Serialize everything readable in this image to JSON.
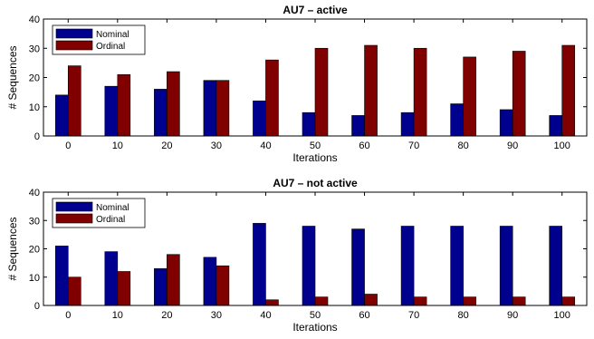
{
  "chart_data": [
    {
      "type": "bar",
      "title": "AU7 – active",
      "xlabel": "Iterations",
      "ylabel": "# Sequences",
      "categories": [
        "0",
        "10",
        "20",
        "30",
        "40",
        "50",
        "60",
        "70",
        "80",
        "90",
        "100"
      ],
      "ylim": [
        0,
        40
      ],
      "yticks": [
        0,
        10,
        20,
        30,
        40
      ],
      "legend_position": "top-left",
      "grid": false,
      "series": [
        {
          "name": "Nominal",
          "color": "#00008f",
          "values": [
            14,
            17,
            16,
            19,
            12,
            8,
            7,
            8,
            11,
            9,
            7
          ]
        },
        {
          "name": "Ordinal",
          "color": "#800000",
          "values": [
            24,
            21,
            22,
            19,
            26,
            30,
            31,
            30,
            27,
            29,
            31
          ]
        }
      ]
    },
    {
      "type": "bar",
      "title": "AU7 – not active",
      "xlabel": "Iterations",
      "ylabel": "# Sequences",
      "categories": [
        "0",
        "10",
        "20",
        "30",
        "40",
        "50",
        "60",
        "70",
        "80",
        "90",
        "100"
      ],
      "ylim": [
        0,
        40
      ],
      "yticks": [
        0,
        10,
        20,
        30,
        40
      ],
      "legend_position": "top-left",
      "grid": false,
      "series": [
        {
          "name": "Nominal",
          "color": "#00008f",
          "values": [
            21,
            19,
            13,
            17,
            29,
            28,
            27,
            28,
            28,
            28,
            28
          ]
        },
        {
          "name": "Ordinal",
          "color": "#800000",
          "values": [
            10,
            12,
            18,
            14,
            2,
            3,
            4,
            3,
            3,
            3,
            3
          ]
        }
      ]
    }
  ]
}
